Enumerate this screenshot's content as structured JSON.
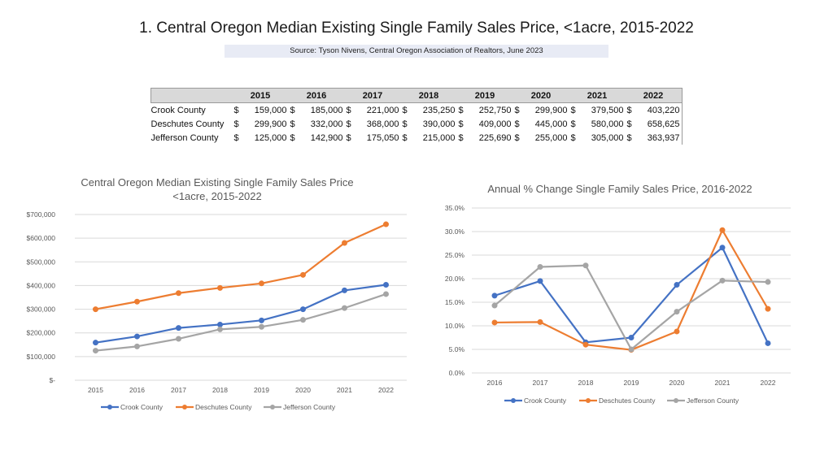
{
  "header": {
    "title": "1.   Central Oregon Median Existing Single Family Sales Price, <1acre, 2015-2022",
    "source": "Source: Tyson Nivens, Central Oregon Association of Realtors, June 2023"
  },
  "table": {
    "years": [
      "2015",
      "2016",
      "2017",
      "2018",
      "2019",
      "2020",
      "2021",
      "2022"
    ],
    "rows": [
      {
        "name": "Crook County",
        "values": [
          "159,000",
          "185,000",
          "221,000",
          "235,250",
          "252,750",
          "299,900",
          "379,500",
          "403,220"
        ]
      },
      {
        "name": "Deschutes County",
        "values": [
          "299,900",
          "332,000",
          "368,000",
          "390,000",
          "409,000",
          "445,000",
          "580,000",
          "658,625"
        ]
      },
      {
        "name": "Jefferson County",
        "values": [
          "125,000",
          "142,900",
          "175,050",
          "215,000",
          "225,690",
          "255,000",
          "305,000",
          "363,937"
        ]
      }
    ],
    "currency": "$"
  },
  "colors": {
    "crook": "#4472c4",
    "deschutes": "#ed7d31",
    "jefferson": "#a5a5a5"
  },
  "chart_data": [
    {
      "type": "line",
      "title": [
        "Central Oregon Median Existing Single Family Sales Price",
        "<1acre, 2015-2022"
      ],
      "categories": [
        "2015",
        "2016",
        "2017",
        "2018",
        "2019",
        "2020",
        "2021",
        "2022"
      ],
      "series": [
        {
          "name": "Crook County",
          "values": [
            159000,
            185000,
            221000,
            235250,
            252750,
            299900,
            379500,
            403220
          ]
        },
        {
          "name": "Deschutes County",
          "values": [
            299900,
            332000,
            368000,
            390000,
            409000,
            445000,
            580000,
            658625
          ]
        },
        {
          "name": "Jefferson County",
          "values": [
            125000,
            142900,
            175050,
            215000,
            225690,
            255000,
            305000,
            363937
          ]
        }
      ],
      "ylim": [
        0,
        700000
      ],
      "yticks": [
        0,
        100000,
        200000,
        300000,
        400000,
        500000,
        600000,
        700000
      ],
      "ytick_labels": [
        "$-",
        "$100,000",
        "$200,000",
        "$300,000",
        "$400,000",
        "$500,000",
        "$600,000",
        "$700,000"
      ],
      "grid": true,
      "legend": "bottom"
    },
    {
      "type": "line",
      "title": [
        "Annual % Change Single Family Sales Price, 2016-2022"
      ],
      "categories": [
        "2016",
        "2017",
        "2018",
        "2019",
        "2020",
        "2021",
        "2022"
      ],
      "series": [
        {
          "name": "Crook County",
          "values": [
            16.4,
            19.5,
            6.5,
            7.5,
            18.7,
            26.6,
            6.3
          ]
        },
        {
          "name": "Deschutes County",
          "values": [
            10.7,
            10.8,
            6.0,
            4.9,
            8.8,
            30.3,
            13.6
          ]
        },
        {
          "name": "Jefferson County",
          "values": [
            14.3,
            22.5,
            22.8,
            5.0,
            13.0,
            19.6,
            19.3
          ]
        }
      ],
      "ylim": [
        0,
        35
      ],
      "yticks": [
        0,
        5,
        10,
        15,
        20,
        25,
        30,
        35
      ],
      "ytick_labels": [
        "0.0%",
        "5.0%",
        "10.0%",
        "15.0%",
        "20.0%",
        "25.0%",
        "30.0%",
        "35.0%"
      ],
      "grid": true,
      "legend": "bottom"
    }
  ]
}
